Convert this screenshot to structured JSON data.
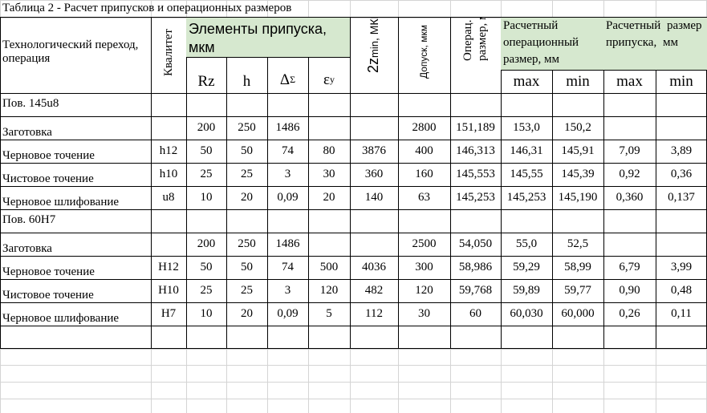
{
  "title": "Таблица 2 - Расчет припусков и операционных размеров",
  "header": {
    "transition": "Технологический переход, операция",
    "quality": "Квалитет",
    "allowance_elements": "Элементы припуска, мкм",
    "rz": "Rz",
    "h": "h",
    "delta": "Δ",
    "delta_sub": "Σ",
    "eps": "ε",
    "eps_sub": "у",
    "zmin": "2z",
    "zmin_sub": "min",
    "zmin_unit": ", МКМ",
    "tolerance": "Допуск, мкм",
    "op_size": "Операц. размер, мм",
    "calc_op_size": "Расчетный операционный размер, мм",
    "calc_allowance": "Расчетный размер припуска, мм",
    "max": "max",
    "min": "min",
    "max2": "max",
    "min2": "min"
  },
  "sections": [
    {
      "title": "Пов. 145u8",
      "rows": [
        {
          "op": "Заготовка",
          "q": "",
          "rz": "200",
          "h": "250",
          "d": "1486",
          "e": "",
          "z": "",
          "tol": "2800",
          "size": "151,189",
          "smax": "153,0",
          "smin": "150,2",
          "amax": "",
          "amin": ""
        },
        {
          "op": "Черновое точение",
          "q": "h12",
          "rz": "50",
          "h": "50",
          "d": "74",
          "e": "80",
          "z": "3876",
          "tol": "400",
          "size": "146,313",
          "smax": "146,31",
          "smin": "145,91",
          "amax": "7,09",
          "amin": "3,89"
        },
        {
          "op": "Чистовое точение",
          "q": "h10",
          "rz": "25",
          "h": "25",
          "d": "3",
          "e": "30",
          "z": "360",
          "tol": "160",
          "size": "145,553",
          "smax": "145,55",
          "smin": "145,39",
          "amax": "0,92",
          "amin": "0,36"
        },
        {
          "op": "Черновое шлифование",
          "q": "u8",
          "rz": "10",
          "h": "20",
          "d": "0,09",
          "e": "20",
          "z": "140",
          "tol": "63",
          "size": "145,253",
          "smax": "145,253",
          "smin": "145,190",
          "amax": "0,360",
          "amin": "0,137"
        }
      ]
    },
    {
      "title": "Пов. 60Н7",
      "rows": [
        {
          "op": "Заготовка",
          "q": "",
          "rz": "200",
          "h": "250",
          "d": "1486",
          "e": "",
          "z": "",
          "tol": "2500",
          "size": "54,050",
          "smax": "55,0",
          "smin": "52,5",
          "amax": "",
          "amin": ""
        },
        {
          "op": "Черновое точение",
          "q": "Н12",
          "rz": "50",
          "h": "50",
          "d": "74",
          "e": "500",
          "z": "4036",
          "tol": "300",
          "size": "58,986",
          "smax": "59,29",
          "smin": "58,99",
          "amax": "6,79",
          "amin": "3,99"
        },
        {
          "op": "Чистовое точение",
          "q": "Н10",
          "rz": "25",
          "h": "25",
          "d": "3",
          "e": "120",
          "z": "482",
          "tol": "120",
          "size": "59,768",
          "smax": "59,89",
          "smin": "59,77",
          "amax": "0,90",
          "amin": "0,48"
        },
        {
          "op": "Черновое шлифование",
          "q": "Н7",
          "rz": "10",
          "h": "20",
          "d": "0,09",
          "e": "5",
          "z": "112",
          "tol": "30",
          "size": "60",
          "smax": "60,030",
          "smin": "60,000",
          "amax": "0,26",
          "amin": "0,11"
        }
      ]
    }
  ]
}
